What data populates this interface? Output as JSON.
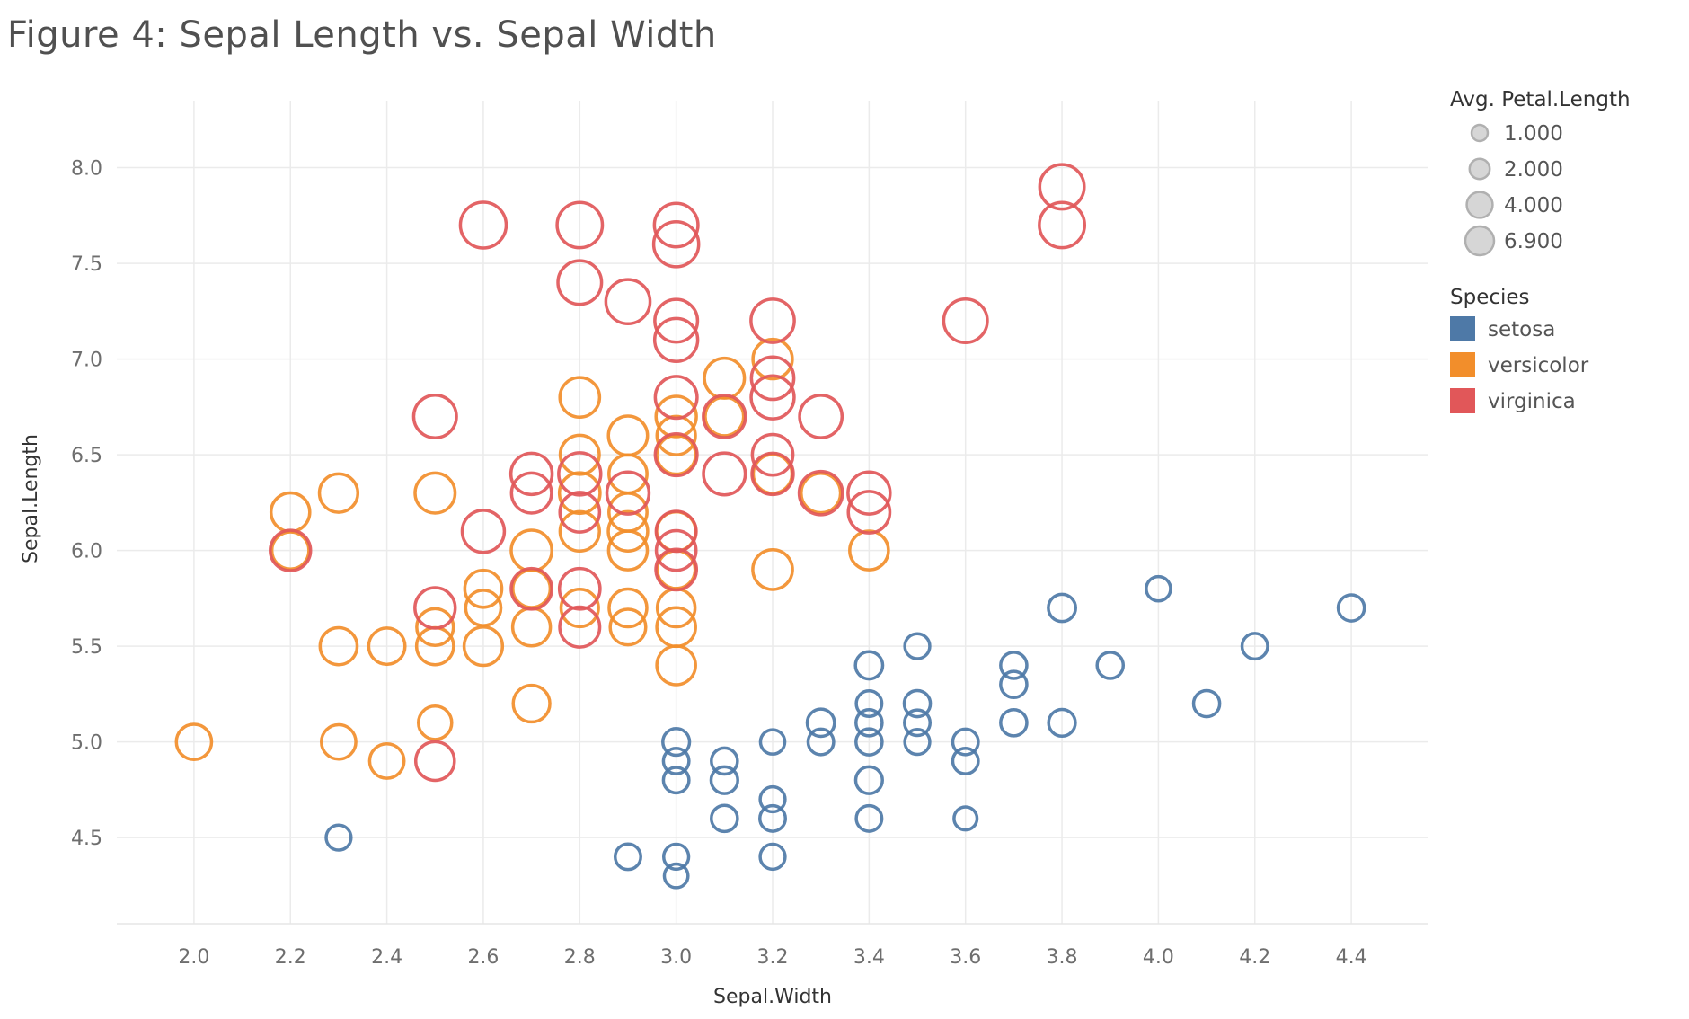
{
  "chart_data": {
    "type": "scatter",
    "title": "Figure 4: Sepal Length vs. Sepal Width",
    "xlabel": "Sepal.Width",
    "ylabel": "Sepal.Length",
    "xlim": [
      1.84,
      4.56
    ],
    "ylim": [
      4.05,
      8.35
    ],
    "x_ticks": [
      2.0,
      2.2,
      2.4,
      2.6,
      2.8,
      3.0,
      3.2,
      3.4,
      3.6,
      3.8,
      4.0,
      4.2,
      4.4
    ],
    "y_ticks": [
      4.5,
      5.0,
      5.5,
      6.0,
      6.5,
      7.0,
      7.5,
      8.0
    ],
    "x_tick_labels": [
      "2.0",
      "2.2",
      "2.4",
      "2.6",
      "2.8",
      "3.0",
      "3.2",
      "3.4",
      "3.6",
      "3.8",
      "4.0",
      "4.2",
      "4.4"
    ],
    "y_tick_labels": [
      "4.5",
      "5.0",
      "5.5",
      "6.0",
      "6.5",
      "7.0",
      "7.5",
      "8.0"
    ],
    "grid": true,
    "legend_placement": "right",
    "size_legend": {
      "title": "Avg. Petal.Length",
      "entries": [
        {
          "label": "1.000",
          "value": 1.0
        },
        {
          "label": "2.000",
          "value": 2.0
        },
        {
          "label": "4.000",
          "value": 4.0
        },
        {
          "label": "6.900",
          "value": 6.9
        }
      ]
    },
    "color_legend": {
      "title": "Species",
      "entries": [
        {
          "label": "setosa",
          "color": "#4e79a7"
        },
        {
          "label": "versicolor",
          "color": "#f28e2b"
        },
        {
          "label": "virginica",
          "color": "#e15759"
        }
      ]
    },
    "series": [
      {
        "name": "setosa",
        "color": "#4e79a7",
        "points": [
          [
            2.3,
            4.5,
            1.3
          ],
          [
            2.9,
            4.4,
            1.4
          ],
          [
            3.0,
            4.4,
            1.3
          ],
          [
            3.0,
            4.3,
            1.1
          ],
          [
            3.2,
            4.4,
            1.3
          ],
          [
            3.0,
            5.0,
            1.6
          ],
          [
            3.0,
            4.9,
            1.4
          ],
          [
            3.0,
            4.8,
            1.4
          ],
          [
            3.1,
            4.9,
            1.5
          ],
          [
            3.1,
            4.8,
            1.6
          ],
          [
            3.1,
            4.6,
            1.5
          ],
          [
            3.2,
            5.0,
            1.2
          ],
          [
            3.2,
            4.7,
            1.3
          ],
          [
            3.2,
            4.6,
            1.4
          ],
          [
            3.3,
            5.1,
            1.7
          ],
          [
            3.3,
            5.0,
            1.4
          ],
          [
            3.4,
            5.4,
            1.7
          ],
          [
            3.4,
            5.2,
            1.4
          ],
          [
            3.4,
            5.1,
            1.5
          ],
          [
            3.4,
            5.0,
            1.5
          ],
          [
            3.4,
            4.8,
            1.6
          ],
          [
            3.4,
            4.6,
            1.4
          ],
          [
            3.5,
            5.5,
            1.3
          ],
          [
            3.5,
            5.2,
            1.5
          ],
          [
            3.5,
            5.1,
            1.4
          ],
          [
            3.5,
            5.0,
            1.3
          ],
          [
            3.6,
            5.0,
            1.4
          ],
          [
            3.6,
            4.9,
            1.4
          ],
          [
            3.6,
            4.6,
            1.0
          ],
          [
            3.7,
            5.4,
            1.5
          ],
          [
            3.7,
            5.3,
            1.5
          ],
          [
            3.7,
            5.1,
            1.5
          ],
          [
            3.8,
            5.7,
            1.7
          ],
          [
            3.8,
            5.1,
            1.6
          ],
          [
            3.9,
            5.4,
            1.5
          ],
          [
            4.0,
            5.8,
            1.2
          ],
          [
            4.1,
            5.2,
            1.5
          ],
          [
            4.2,
            5.5,
            1.4
          ],
          [
            4.4,
            5.7,
            1.5
          ]
        ]
      },
      {
        "name": "versicolor",
        "color": "#f28e2b",
        "points": [
          [
            2.0,
            5.0,
            3.5
          ],
          [
            2.2,
            6.2,
            4.5
          ],
          [
            2.2,
            6.0,
            4.0
          ],
          [
            2.3,
            6.3,
            4.4
          ],
          [
            2.3,
            5.5,
            4.0
          ],
          [
            2.3,
            5.0,
            3.3
          ],
          [
            2.4,
            5.5,
            3.8
          ],
          [
            2.4,
            4.9,
            3.3
          ],
          [
            2.5,
            6.3,
            4.9
          ],
          [
            2.5,
            5.6,
            3.9
          ],
          [
            2.5,
            5.5,
            4.0
          ],
          [
            2.5,
            5.1,
            3.0
          ],
          [
            2.6,
            5.8,
            4.0
          ],
          [
            2.6,
            5.7,
            3.5
          ],
          [
            2.6,
            5.5,
            4.4
          ],
          [
            2.7,
            6.0,
            5.1
          ],
          [
            2.7,
            5.8,
            4.1
          ],
          [
            2.7,
            5.6,
            4.2
          ],
          [
            2.7,
            5.2,
            3.9
          ],
          [
            2.8,
            6.8,
            4.8
          ],
          [
            2.8,
            6.5,
            4.6
          ],
          [
            2.8,
            6.3,
            5.1
          ],
          [
            2.8,
            6.1,
            4.7
          ],
          [
            2.8,
            5.7,
            4.1
          ],
          [
            2.9,
            6.6,
            4.6
          ],
          [
            2.9,
            6.4,
            4.3
          ],
          [
            2.9,
            6.2,
            4.3
          ],
          [
            2.9,
            6.1,
            4.7
          ],
          [
            2.9,
            6.0,
            4.5
          ],
          [
            2.9,
            5.7,
            4.2
          ],
          [
            2.9,
            5.6,
            3.6
          ],
          [
            3.0,
            6.7,
            5.0
          ],
          [
            3.0,
            6.6,
            4.4
          ],
          [
            3.0,
            6.5,
            4.5
          ],
          [
            3.0,
            6.1,
            4.6
          ],
          [
            3.0,
            5.9,
            4.2
          ],
          [
            3.0,
            5.7,
            4.2
          ],
          [
            3.0,
            5.6,
            4.5
          ],
          [
            3.0,
            5.4,
            4.5
          ],
          [
            3.1,
            6.9,
            4.9
          ],
          [
            3.1,
            6.7,
            4.4
          ],
          [
            3.2,
            7.0,
            4.7
          ],
          [
            3.2,
            6.4,
            4.5
          ],
          [
            3.2,
            5.9,
            4.8
          ],
          [
            3.3,
            6.3,
            4.7
          ],
          [
            3.4,
            6.0,
            4.5
          ]
        ]
      },
      {
        "name": "virginica",
        "color": "#e15759",
        "points": [
          [
            2.2,
            6.0,
            5.0
          ],
          [
            2.5,
            6.7,
            5.8
          ],
          [
            2.5,
            5.7,
            5.0
          ],
          [
            2.5,
            4.9,
            4.5
          ],
          [
            2.6,
            7.7,
            6.9
          ],
          [
            2.6,
            6.1,
            5.6
          ],
          [
            2.7,
            6.4,
            5.3
          ],
          [
            2.7,
            6.3,
            4.9
          ],
          [
            2.7,
            5.8,
            5.1
          ],
          [
            2.8,
            7.7,
            6.7
          ],
          [
            2.8,
            7.4,
            6.1
          ],
          [
            2.8,
            6.4,
            5.6
          ],
          [
            2.8,
            6.2,
            4.8
          ],
          [
            2.8,
            5.8,
            5.1
          ],
          [
            2.8,
            5.6,
            4.9
          ],
          [
            2.9,
            7.3,
            6.3
          ],
          [
            2.9,
            6.3,
            5.6
          ],
          [
            3.0,
            7.7,
            6.1
          ],
          [
            3.0,
            7.6,
            6.6
          ],
          [
            3.0,
            7.2,
            5.8
          ],
          [
            3.0,
            7.1,
            5.9
          ],
          [
            3.0,
            6.8,
            5.5
          ],
          [
            3.0,
            6.5,
            5.5
          ],
          [
            3.0,
            6.1,
            4.9
          ],
          [
            3.0,
            6.0,
            4.8
          ],
          [
            3.0,
            5.9,
            5.1
          ],
          [
            3.1,
            6.7,
            5.6
          ],
          [
            3.1,
            6.4,
            5.5
          ],
          [
            3.2,
            7.2,
            6.0
          ],
          [
            3.2,
            6.9,
            5.7
          ],
          [
            3.2,
            6.8,
            5.9
          ],
          [
            3.2,
            6.5,
            5.1
          ],
          [
            3.2,
            6.4,
            5.3
          ],
          [
            3.3,
            6.7,
            5.7
          ],
          [
            3.3,
            6.3,
            6.0
          ],
          [
            3.4,
            6.3,
            5.6
          ],
          [
            3.4,
            6.2,
            5.4
          ],
          [
            3.6,
            7.2,
            6.1
          ],
          [
            3.8,
            7.9,
            6.4
          ],
          [
            3.8,
            7.7,
            6.7
          ]
        ]
      }
    ]
  }
}
